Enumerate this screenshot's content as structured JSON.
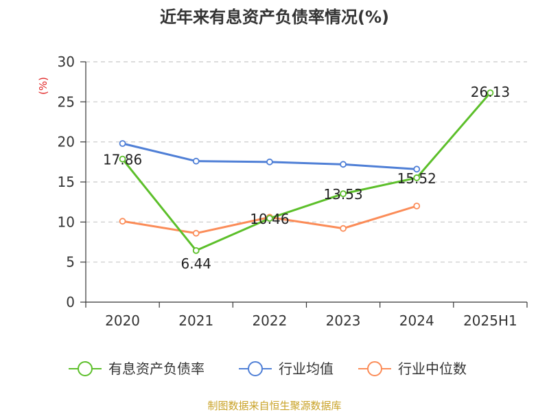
{
  "chart_data": {
    "type": "line",
    "title": "近年来有息资产负债率情况(%)",
    "ylabel": "(%)",
    "xlabel": "",
    "categories": [
      "2020",
      "2021",
      "2022",
      "2023",
      "2024",
      "2025H1"
    ],
    "ylim": [
      0,
      30
    ],
    "yticks": [
      "0",
      "5",
      "10",
      "15",
      "20",
      "25",
      "30"
    ],
    "grid": true,
    "legend_position": "bottom",
    "series": [
      {
        "name": "有息资产负债率",
        "color": "#5cbf2a",
        "values": [
          17.86,
          6.44,
          10.46,
          13.53,
          15.52,
          26.13
        ],
        "labels": [
          "17.86",
          "6.44",
          "10.46",
          "13.53",
          "15.52",
          "26.13"
        ]
      },
      {
        "name": "行业均值",
        "color": "#4f7fd6",
        "values": [
          19.8,
          17.6,
          17.5,
          17.2,
          16.6,
          null
        ]
      },
      {
        "name": "行业中位数",
        "color": "#fb8c58",
        "values": [
          10.1,
          8.6,
          10.6,
          9.2,
          12.0,
          null
        ]
      }
    ]
  },
  "source": {
    "text": "制图数据来自恒生聚源数据库",
    "color": "#c9a227"
  },
  "ylabel_color": "#e02020"
}
